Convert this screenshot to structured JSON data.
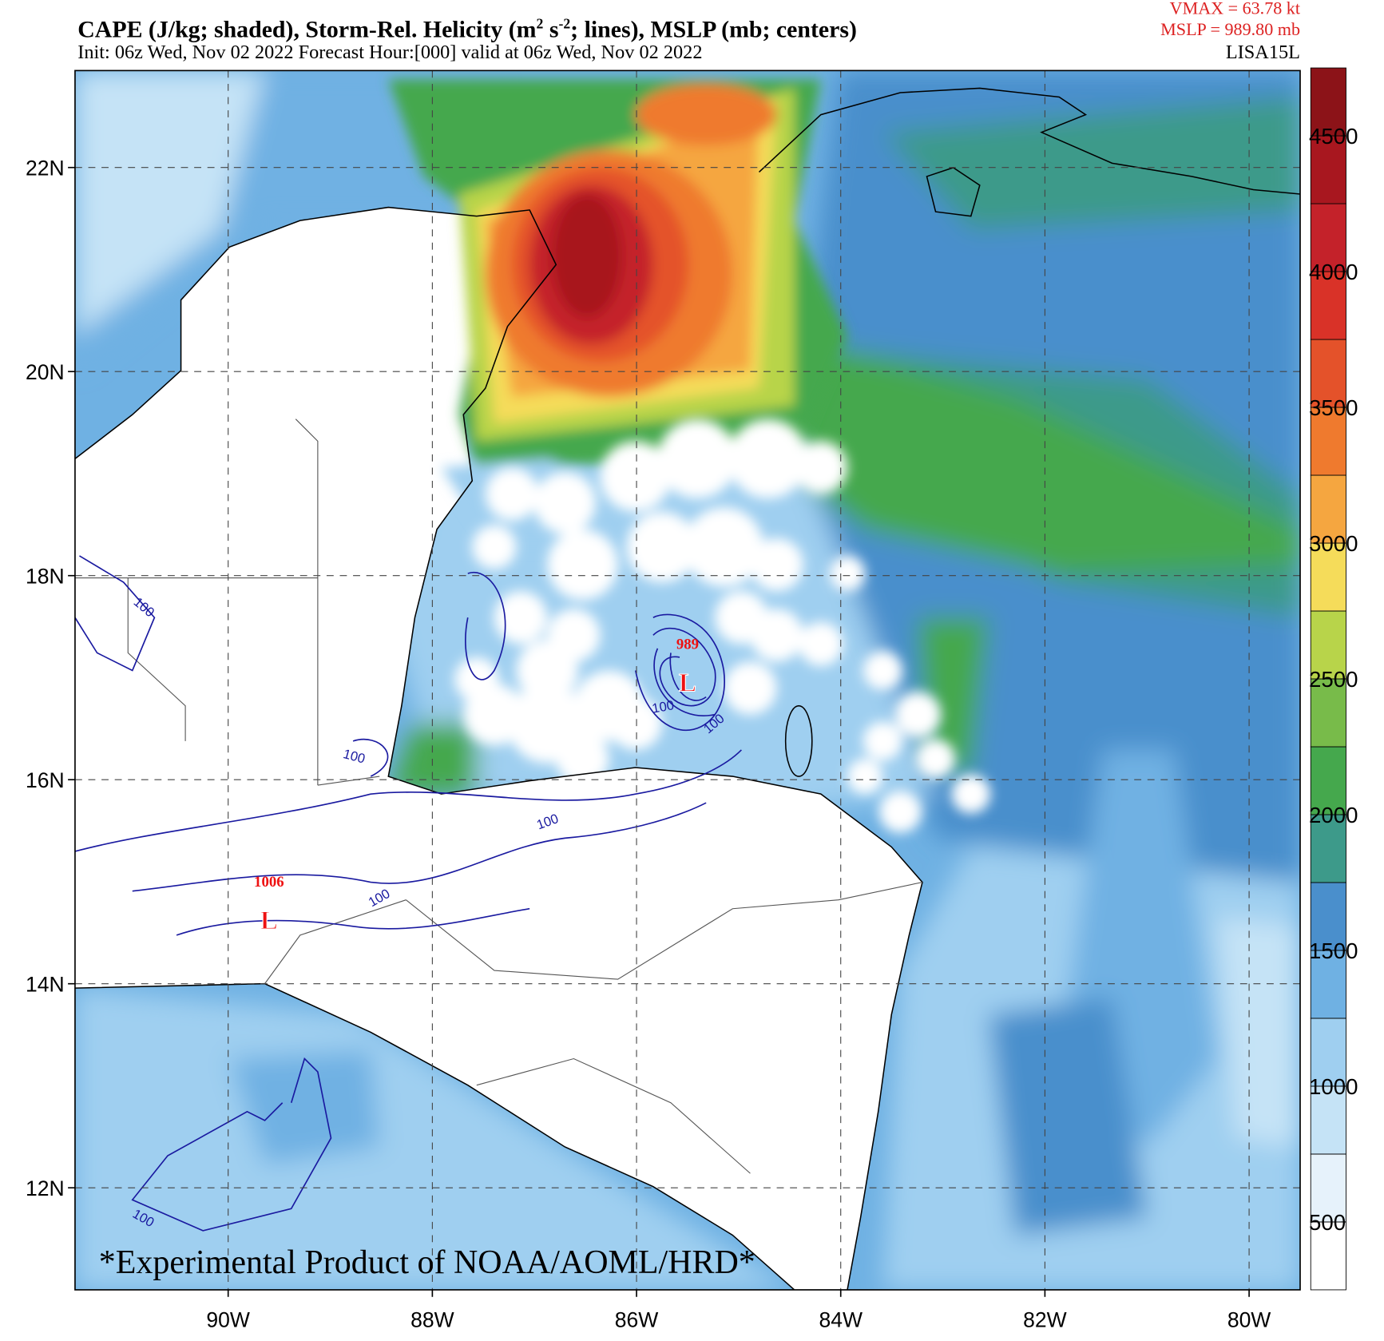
{
  "title_parts": [
    "CAPE (J/kg; shaded), Storm-Rel. Helicity (m",
    "2",
    " s",
    "-2",
    "; lines), MSLP (mb; centers)"
  ],
  "subtitle": "Init: 06z Wed, Nov 02 2022  Forecast Hour:[000]  valid at 06z Wed, Nov 02 2022",
  "storm_info": [
    "VMAX =   63.78 kt",
    "MSLP =  989.80 mb"
  ],
  "storm_id": "LISA15L",
  "map": {
    "xlim": [
      -91.5,
      -79.5
    ],
    "ylim": [
      11,
      22.95
    ],
    "xticks": [
      {
        "value": -90,
        "label": "90W"
      },
      {
        "value": -88,
        "label": "88W"
      },
      {
        "value": -86,
        "label": "86W"
      },
      {
        "value": -84,
        "label": "84W"
      },
      {
        "value": -82,
        "label": "82W"
      },
      {
        "value": -80,
        "label": "80W"
      }
    ],
    "yticks": [
      {
        "value": 12,
        "label": "12N"
      },
      {
        "value": 14,
        "label": "14N"
      },
      {
        "value": 16,
        "label": "16N"
      },
      {
        "value": 18,
        "label": "18N"
      },
      {
        "value": 20,
        "label": "20N"
      },
      {
        "value": 22,
        "label": "22N"
      }
    ],
    "grid": true
  },
  "pressure_centers": [
    {
      "label": "989",
      "marker": "L",
      "lon": -85.5,
      "lat": 16.97
    },
    {
      "label": "1006",
      "marker": "L",
      "lon": -89.6,
      "lat": 14.64
    }
  ],
  "helicity_contour_labels": [
    "100",
    "100",
    "100",
    "100",
    "100",
    "100",
    "100"
  ],
  "colorbar": {
    "range": [
      250,
      4750
    ],
    "ticks": [
      500,
      1000,
      1500,
      2000,
      2500,
      3000,
      3500,
      4000,
      4500
    ],
    "colors": [
      "#ffffff",
      "#e6f2fb",
      "#c5e3f6",
      "#9fcff0",
      "#6fb1e3",
      "#4a8fcc",
      "#3d9a8a",
      "#45a84d",
      "#78bb4a",
      "#b8d44a",
      "#f5dc5a",
      "#f5a640",
      "#ef7a2e",
      "#e4522a",
      "#d93228",
      "#c4222a",
      "#a8171f",
      "#8c1318"
    ]
  },
  "footer": "*Experimental Product of NOAA/AOML/HRD*"
}
